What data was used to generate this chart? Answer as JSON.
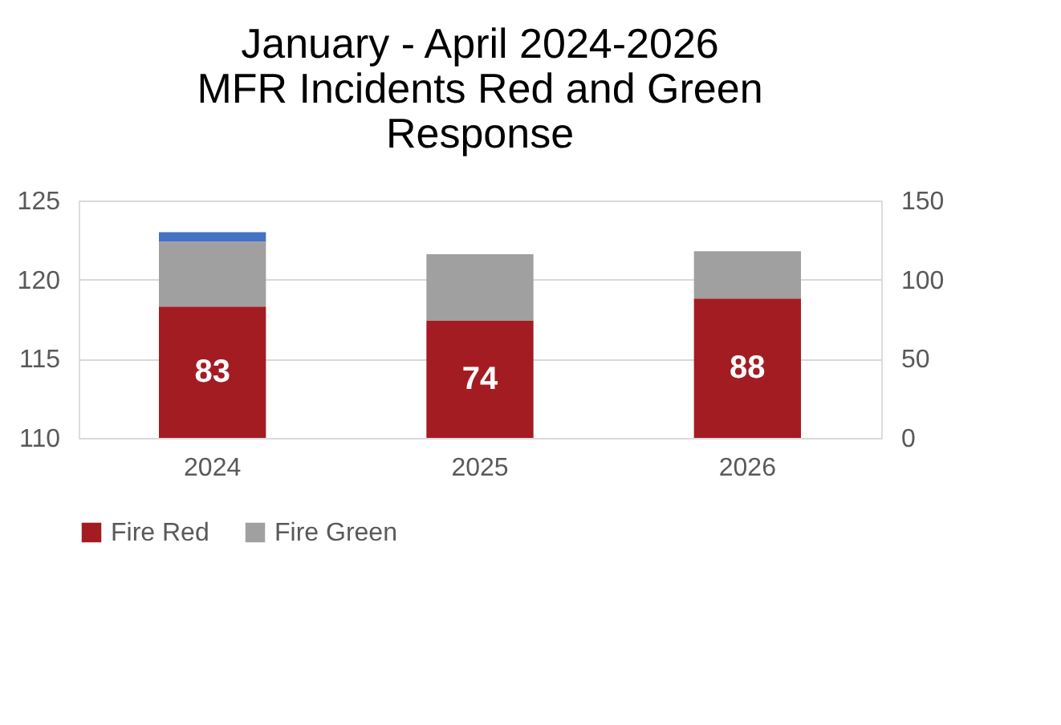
{
  "chart_data": {
    "type": "bar",
    "title": "January - April 2024-2026\nMFR Incidents Red and Green\nResponse",
    "categories": [
      "2024",
      "2025",
      "2026"
    ],
    "stacked": true,
    "ylim": [
      110,
      125
    ],
    "yticks": [
      110,
      115,
      120,
      125
    ],
    "y2lim": [
      0,
      150
    ],
    "y2ticks": [
      0,
      50,
      100,
      150
    ],
    "grid": "y",
    "legend": "bottom",
    "series": [
      {
        "name": "Fire Red",
        "color": "#a31c22",
        "axis": "y2",
        "values": [
          83,
          74,
          88
        ],
        "value_labels": [
          "83",
          "74",
          "88"
        ]
      },
      {
        "name": "Fire Green",
        "color": "#a0a0a0",
        "axis": "y2",
        "values": [
          41,
          42,
          30
        ]
      },
      {
        "color": "#4472c4",
        "axis": "y2",
        "values": [
          6,
          null,
          null
        ]
      }
    ]
  }
}
